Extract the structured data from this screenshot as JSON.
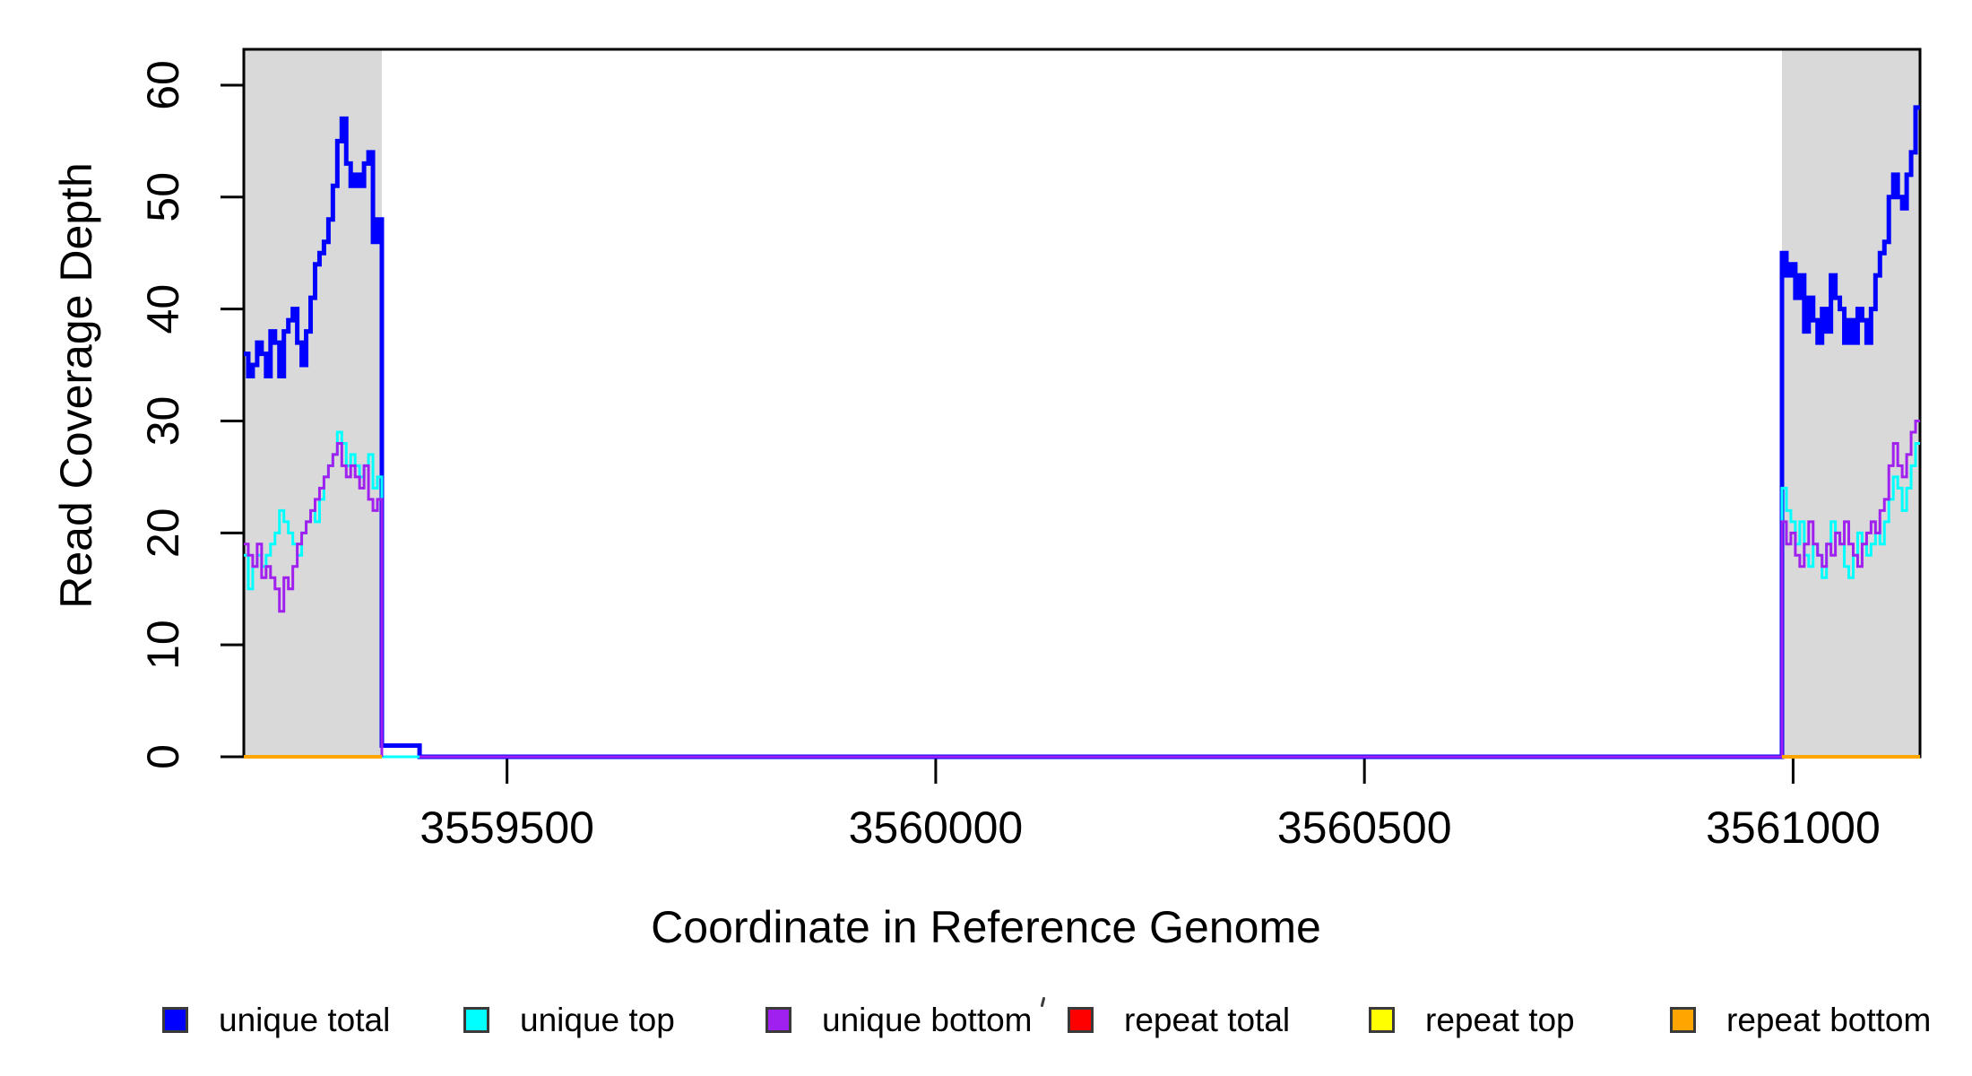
{
  "chart_data": {
    "type": "line",
    "subtype": "step-coverage-plot",
    "title": "",
    "xlabel": "Coordinate in Reference Genome",
    "ylabel": "Read Coverage Depth",
    "xlim": [
      3559193,
      3561148
    ],
    "ylim": [
      0,
      63.2
    ],
    "x_ticks": [
      3559500,
      3560000,
      3560500,
      3561000
    ],
    "y_ticks": [
      0,
      10,
      20,
      30,
      40,
      50,
      60
    ],
    "grid": false,
    "background": "#FFFFFF",
    "box_color": "#000000",
    "shaded_region_color": "#D9D9D9",
    "shaded_regions": [
      {
        "start": 3559193,
        "end": 3559354
      },
      {
        "start": 3560987,
        "end": 3561148
      }
    ],
    "series": [
      {
        "name": "unique total",
        "color": "#0000FF",
        "width": 5,
        "subpaths": [
          {
            "segments": [
              {
                "x0": 3559193,
                "x1": 3559354,
                "values": [
                  36,
                  34,
                  35,
                  37,
                  36,
                  34,
                  38,
                  37,
                  34,
                  38,
                  39,
                  40,
                  37,
                  35,
                  38,
                  41,
                  44,
                  45,
                  46,
                  48,
                  51,
                  55,
                  57,
                  53,
                  51,
                  52,
                  51,
                  53,
                  54,
                  46,
                  48
                ]
              },
              {
                "x0": 3559354,
                "x1": 3559398,
                "values": [
                  1
                ]
              },
              {
                "x0": 3559398,
                "x1": 3560987,
                "values": [
                  0
                ]
              },
              {
                "x0": 3560987,
                "x1": 3561148,
                "values": [
                  45,
                  43,
                  44,
                  41,
                  43,
                  38,
                  41,
                  39,
                  37,
                  40,
                  38,
                  43,
                  41,
                  40,
                  37,
                  39,
                  37,
                  40,
                  39,
                  37,
                  40,
                  43,
                  45,
                  46,
                  50,
                  52,
                  50,
                  49,
                  52,
                  54,
                  58
                ]
              }
            ]
          }
        ]
      },
      {
        "name": "unique top",
        "color": "#00FFFF",
        "width": 3,
        "subpaths": [
          {
            "segments": [
              {
                "x0": 3559193,
                "x1": 3559354,
                "values": [
                  18,
                  15,
                  17,
                  18,
                  17,
                  18,
                  19,
                  20,
                  22,
                  21,
                  20,
                  19,
                  18,
                  20,
                  21,
                  22,
                  21,
                  23,
                  25,
                  26,
                  27,
                  29,
                  28,
                  26,
                  27,
                  26,
                  25,
                  26,
                  27,
                  24,
                  25
                ]
              },
              {
                "x0": 3559354,
                "x1": 3559398,
                "values": [
                  0
                ]
              },
              {
                "x0": 3559398,
                "x1": 3560987,
                "values": [
                  0
                ]
              },
              {
                "x0": 3560987,
                "x1": 3561148,
                "values": [
                  24,
                  22,
                  21,
                  19,
                  21,
                  18,
                  17,
                  19,
                  18,
                  16,
                  19,
                  21,
                  20,
                  19,
                  17,
                  16,
                  18,
                  20,
                  19,
                  18,
                  19,
                  20,
                  19,
                  21,
                  23,
                  25,
                  24,
                  22,
                  24,
                  26,
                  28
                ]
              }
            ]
          }
        ]
      },
      {
        "name": "unique bottom",
        "color": "#A020F0",
        "width": 3,
        "subpaths": [
          {
            "segments": [
              {
                "x0": 3559193,
                "x1": 3559354,
                "values": [
                  19,
                  18,
                  17,
                  19,
                  16,
                  17,
                  16,
                  15,
                  13,
                  16,
                  15,
                  17,
                  19,
                  20,
                  21,
                  22,
                  23,
                  24,
                  25,
                  26,
                  27,
                  28,
                  26,
                  25,
                  26,
                  25,
                  24,
                  26,
                  23,
                  22,
                  23
                ]
              }
            ],
            "end_value": 0
          },
          {
            "segments": [
              {
                "x0": 3559398,
                "x1": 3560987,
                "values": [
                  0
                ]
              },
              {
                "x0": 3560987,
                "x1": 3561148,
                "values": [
                  21,
                  19,
                  20,
                  18,
                  17,
                  19,
                  21,
                  19,
                  18,
                  17,
                  19,
                  18,
                  20,
                  19,
                  21,
                  19,
                  18,
                  17,
                  19,
                  20,
                  21,
                  20,
                  22,
                  23,
                  26,
                  28,
                  26,
                  25,
                  27,
                  29,
                  30
                ]
              }
            ]
          }
        ]
      },
      {
        "name": "repeat total",
        "color": "#FF0000",
        "width": 3.5,
        "subpaths": [
          {
            "segments": [
              {
                "x0": 3559193,
                "x1": 3559354,
                "values": [
                  0
                ]
              }
            ]
          },
          {
            "segments": [
              {
                "x0": 3560987,
                "x1": 3561148,
                "values": [
                  0
                ]
              }
            ]
          }
        ]
      },
      {
        "name": "repeat top",
        "color": "#FFFF00",
        "width": 3.5,
        "subpaths": [
          {
            "segments": [
              {
                "x0": 3559193,
                "x1": 3559354,
                "values": [
                  0
                ]
              }
            ]
          },
          {
            "segments": [
              {
                "x0": 3560987,
                "x1": 3561148,
                "values": [
                  0
                ]
              }
            ]
          }
        ]
      },
      {
        "name": "repeat bottom",
        "color": "#FFA500",
        "width": 4,
        "subpaths": [
          {
            "segments": [
              {
                "x0": 3559193,
                "x1": 3559354,
                "values": [
                  0
                ]
              }
            ]
          },
          {
            "segments": [
              {
                "x0": 3560987,
                "x1": 3561148,
                "values": [
                  0
                ]
              }
            ]
          }
        ]
      }
    ]
  },
  "legend": {
    "items": [
      {
        "label": "unique total",
        "color": "#0000FF"
      },
      {
        "label": "unique top",
        "color": "#00FFFF"
      },
      {
        "label": "unique bottom",
        "color": "#A020F0"
      },
      {
        "label": "repeat total",
        "color": "#FF0000"
      },
      {
        "label": "repeat top",
        "color": "#FFFF00"
      },
      {
        "label": "repeat bottom",
        "color": "#FFA500"
      }
    ]
  }
}
